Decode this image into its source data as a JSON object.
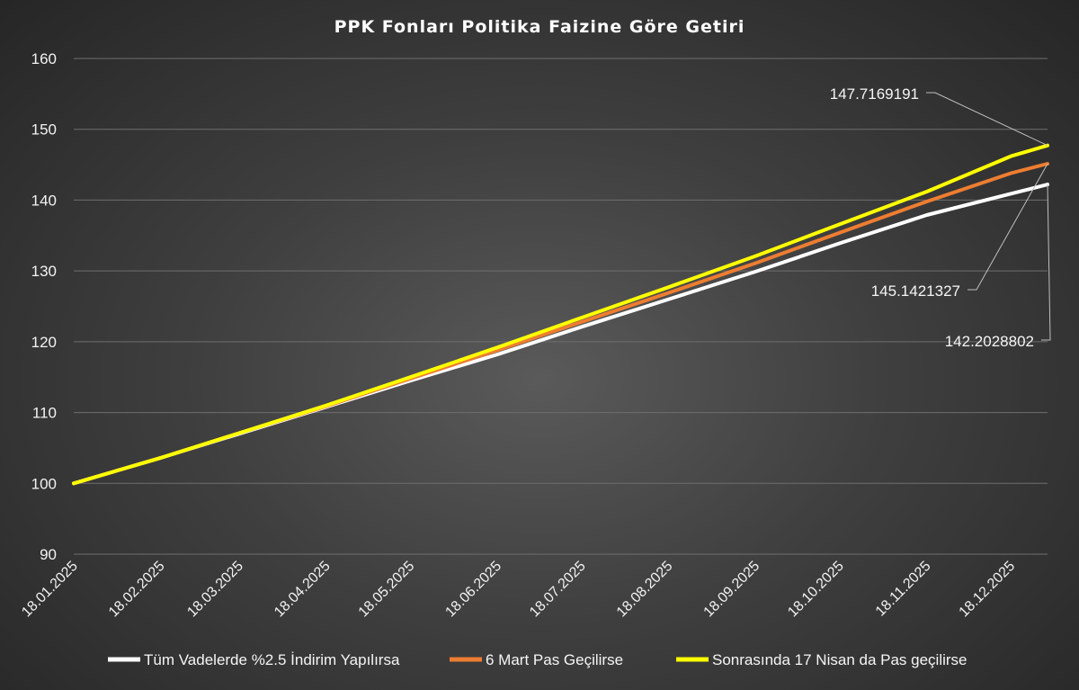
{
  "chart_data": {
    "type": "line",
    "title": "PPK Fonları Politika Faizine Göre Getiri",
    "xlabel": "",
    "ylabel": "",
    "ylim": [
      90,
      160
    ],
    "yticks": [
      "90",
      "100",
      "110",
      "120",
      "130",
      "140",
      "150",
      "160"
    ],
    "x_tick_labels": [
      "18.01.2025",
      "18.02.2025",
      "18.03.2025",
      "18.04.2025",
      "18.05.2025",
      "18.06.2025",
      "18.07.2025",
      "18.08.2025",
      "18.09.2025",
      "18.10.2025",
      "18.11.2025",
      "18.12.2025"
    ],
    "x_range": [
      "18.01.2025",
      "31.12.2025"
    ],
    "grid": true,
    "legend_position": "bottom",
    "series": [
      {
        "name": "Tüm Vadelerde %2.5 İndirim Yapılırsa",
        "color": "#ffffff",
        "x": [
          "18.01.2025",
          "18.02.2025",
          "18.03.2025",
          "18.04.2025",
          "18.05.2025",
          "18.06.2025",
          "18.07.2025",
          "18.08.2025",
          "18.09.2025",
          "18.10.2025",
          "18.11.2025",
          "18.12.2025",
          "31.12.2025"
        ],
        "values": [
          100,
          103.6,
          107.0,
          110.8,
          114.5,
          118.2,
          122.1,
          126.0,
          129.9,
          133.9,
          137.9,
          140.9,
          142.2028802
        ],
        "end_label": "142.2028802"
      },
      {
        "name": "6 Mart  Pas Geçilirse",
        "color": "#ed7d31",
        "x": [
          "18.01.2025",
          "18.02.2025",
          "18.03.2025",
          "18.04.2025",
          "18.05.2025",
          "18.06.2025",
          "18.07.2025",
          "18.08.2025",
          "18.09.2025",
          "18.10.2025",
          "18.11.2025",
          "18.12.2025",
          "31.12.2025"
        ],
        "values": [
          100,
          103.6,
          107.1,
          110.9,
          114.8,
          118.8,
          122.8,
          126.9,
          131.1,
          135.4,
          139.8,
          143.8,
          145.1421327
        ],
        "end_label": "145.1421327"
      },
      {
        "name": "Sonrasında 17 Nisan da Pas geçilirse",
        "color": "#ffff00",
        "x": [
          "18.01.2025",
          "18.02.2025",
          "18.03.2025",
          "18.04.2025",
          "18.05.2025",
          "18.06.2025",
          "18.07.2025",
          "18.08.2025",
          "18.09.2025",
          "18.10.2025",
          "18.11.2025",
          "18.12.2025",
          "31.12.2025"
        ],
        "values": [
          100,
          103.6,
          107.1,
          111.0,
          115.0,
          119.2,
          123.4,
          127.7,
          132.1,
          136.6,
          141.2,
          146.2,
          147.7169191
        ],
        "end_label": "147.7169191"
      }
    ]
  }
}
